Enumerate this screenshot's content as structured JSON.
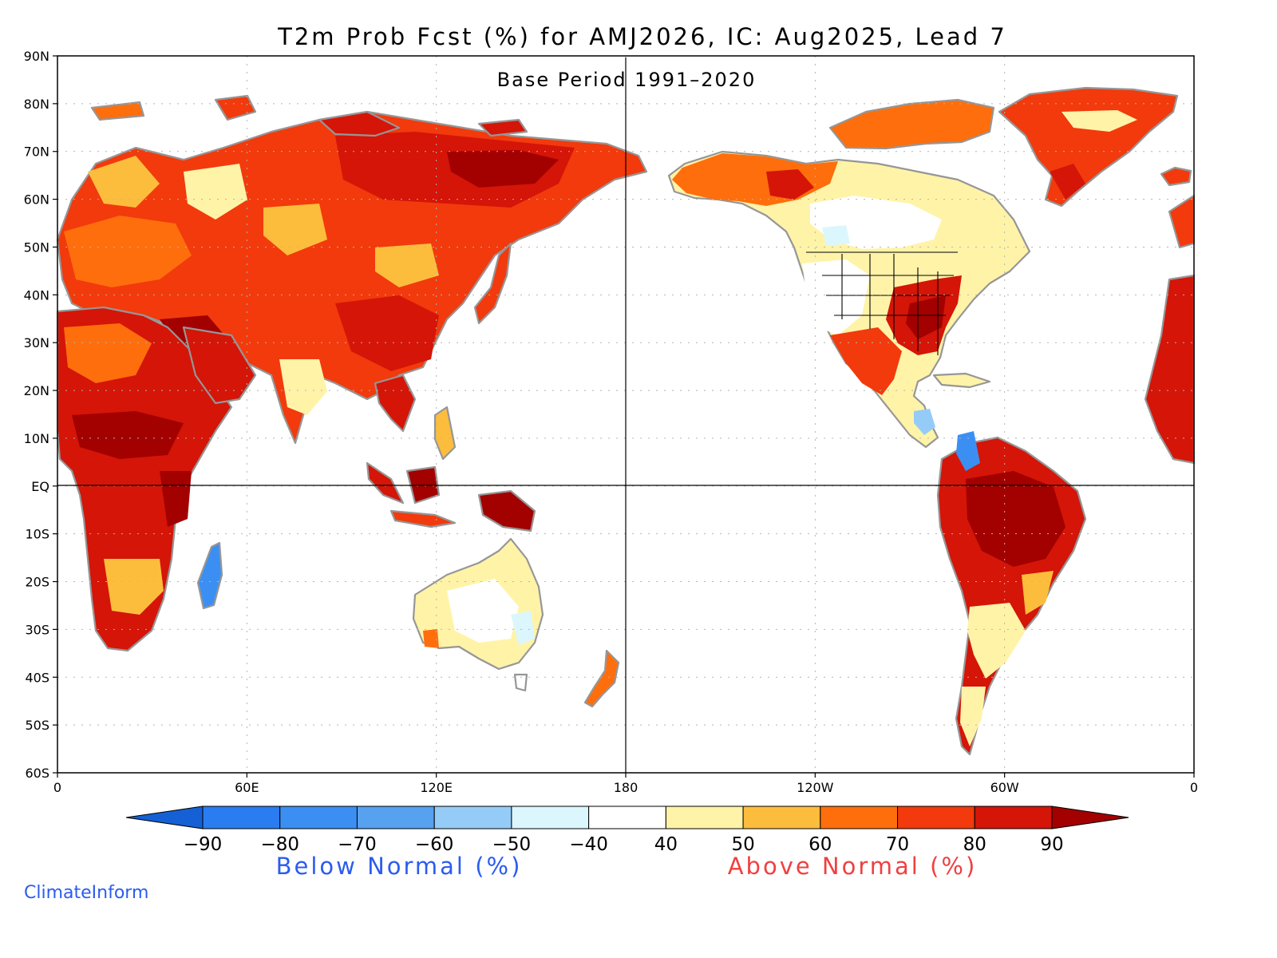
{
  "title": "T2m Prob Fcst (%) for AMJ2026, IC: Aug2025, Lead 7",
  "subtitle": "Base Period 1991–2020",
  "credit": "ClimateInform",
  "map_data": {
    "type": "gridded_probability_map",
    "projection": "equirectangular",
    "lon_range": [
      0,
      360
    ],
    "lat_range": [
      -60,
      90
    ],
    "lat_ticks": [
      {
        "value": 90,
        "label": "90N"
      },
      {
        "value": 80,
        "label": "80N"
      },
      {
        "value": 70,
        "label": "70N"
      },
      {
        "value": 60,
        "label": "60N"
      },
      {
        "value": 50,
        "label": "50N"
      },
      {
        "value": 40,
        "label": "40N"
      },
      {
        "value": 30,
        "label": "30N"
      },
      {
        "value": 20,
        "label": "20N"
      },
      {
        "value": 10,
        "label": "10N"
      },
      {
        "value": 0,
        "label": "EQ"
      },
      {
        "value": -10,
        "label": "10S"
      },
      {
        "value": -20,
        "label": "20S"
      },
      {
        "value": -30,
        "label": "30S"
      },
      {
        "value": -40,
        "label": "40S"
      },
      {
        "value": -50,
        "label": "50S"
      },
      {
        "value": -60,
        "label": "60S"
      }
    ],
    "lon_ticks": [
      {
        "value": 0,
        "label": "0"
      },
      {
        "value": 60,
        "label": "60E"
      },
      {
        "value": 120,
        "label": "120E"
      },
      {
        "value": 180,
        "label": "180"
      },
      {
        "value": 240,
        "label": "120W"
      },
      {
        "value": 300,
        "label": "60W"
      },
      {
        "value": 360,
        "label": "0"
      }
    ],
    "gridlines": "dotted",
    "reference_lines": [
      {
        "axis": "lon",
        "value": 180
      },
      {
        "axis": "lat",
        "value": 0
      }
    ]
  },
  "colorbar": {
    "ticks": [
      "−90",
      "−80",
      "−70",
      "−60",
      "−50",
      "−40",
      "40",
      "50",
      "60",
      "70",
      "80",
      "90"
    ],
    "bins": [
      {
        "range": "<-90",
        "color": "#1560d4"
      },
      {
        "range": "-90 to -80",
        "color": "#2a7df0"
      },
      {
        "range": "-80 to -70",
        "color": "#3c8ff2"
      },
      {
        "range": "-70 to -60",
        "color": "#56a1f0"
      },
      {
        "range": "-60 to -50",
        "color": "#95ccf7"
      },
      {
        "range": "-50 to -40",
        "color": "#dcf6fd"
      },
      {
        "range": "-40 to 40",
        "color": "#ffffff"
      },
      {
        "range": "40 to 50",
        "color": "#fff3a8"
      },
      {
        "range": "50 to 60",
        "color": "#fdbd3c"
      },
      {
        "range": "60 to 70",
        "color": "#ff6e0c"
      },
      {
        "range": "70 to 80",
        "color": "#f23a0c"
      },
      {
        "range": "80 to 90",
        "color": "#d41508"
      },
      {
        "range": ">90",
        "color": "#a30000"
      }
    ],
    "below_label": "Below Normal (%)",
    "above_label": "Above Normal (%)",
    "below_color": "#2b5cf0",
    "above_color": "#f04040"
  },
  "colors": {
    "coastline": "#969696",
    "border": "#000000",
    "gridline": "#b4b4b4"
  }
}
